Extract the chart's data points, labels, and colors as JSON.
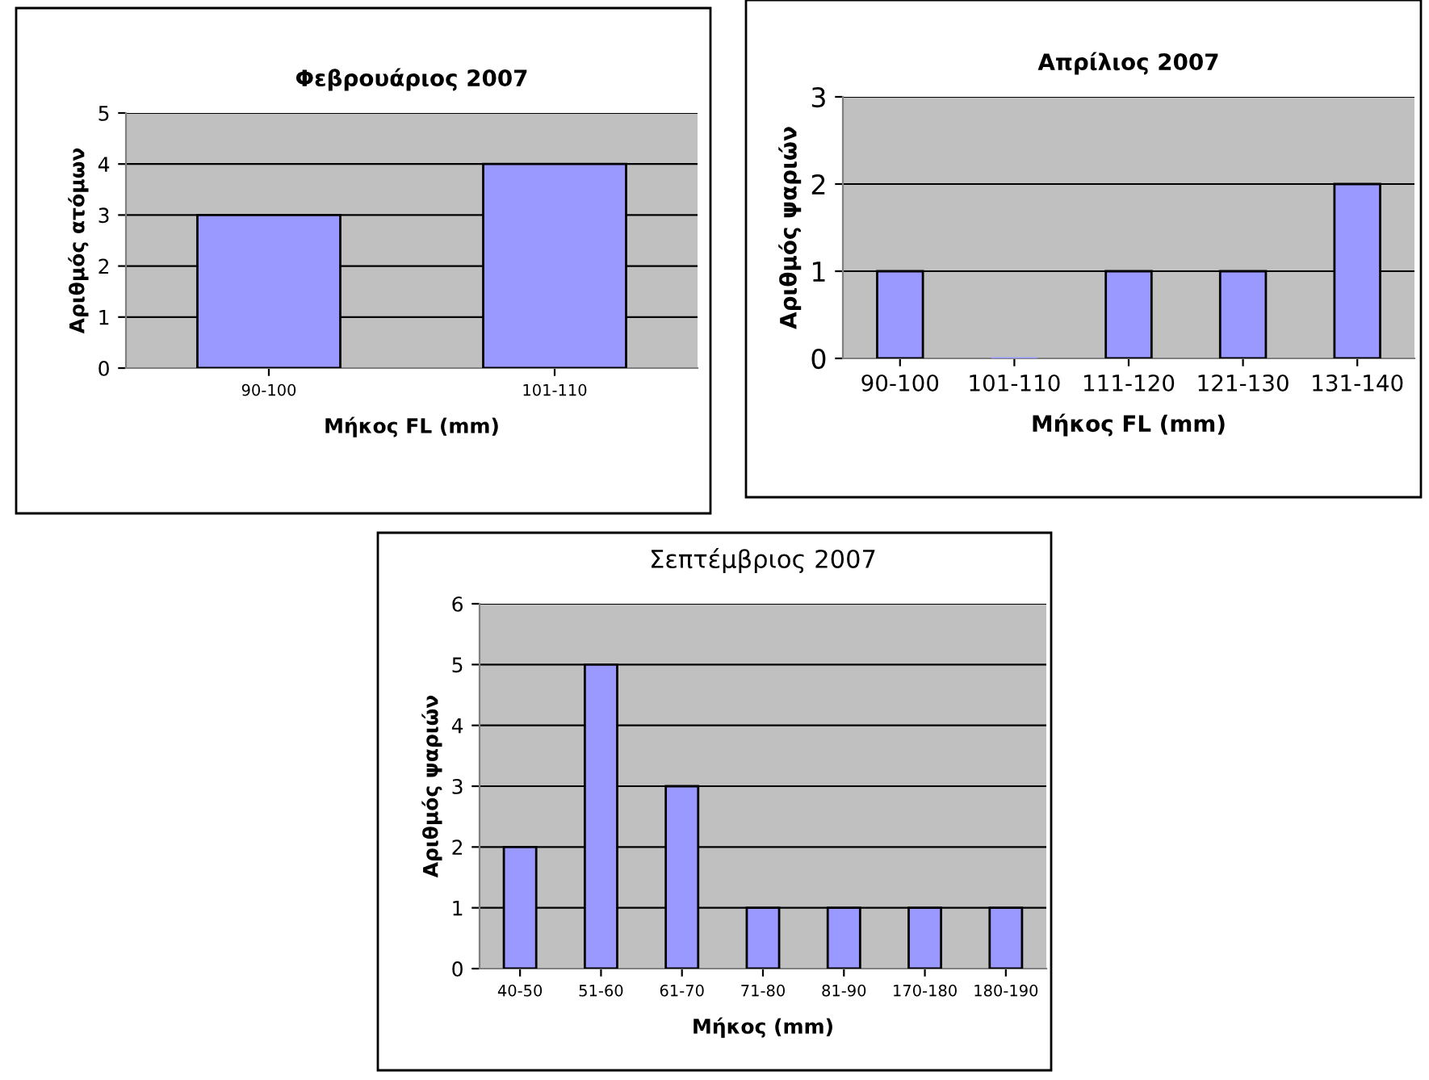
{
  "chart_data": [
    {
      "type": "bar",
      "title": "Φεβρουάριος 2007",
      "xlabel": "Μήκος FL (mm)",
      "ylabel": "Αριθμός ατόμων",
      "categories": [
        "90-100",
        "101-110"
      ],
      "values": [
        3,
        4
      ],
      "color": "#9999ff",
      "ylim": [
        0,
        5
      ],
      "yticks": [
        0,
        1,
        2,
        3,
        4,
        5
      ],
      "grid": "y"
    },
    {
      "type": "bar",
      "title": "Απρίλιος 2007",
      "xlabel": "Μήκος FL (mm)",
      "ylabel": "Αριθμός ψαριών",
      "categories": [
        "90-100",
        "101-110",
        "111-120",
        "121-130",
        "131-140"
      ],
      "values": [
        1,
        0,
        1,
        1,
        2
      ],
      "color": "#9999ff",
      "ylim": [
        0,
        3
      ],
      "yticks": [
        0,
        1,
        2,
        3
      ],
      "grid": "y"
    },
    {
      "type": "bar",
      "title": "Σεπτέμβριος 2007",
      "xlabel": "Μήκος (mm)",
      "ylabel": "Αριθμός ψαριών",
      "categories": [
        "40-50",
        "51-60",
        "61-70",
        "71-80",
        "81-90",
        "170-180",
        "180-190"
      ],
      "values": [
        2,
        5,
        3,
        1,
        1,
        1,
        1
      ],
      "color": "#9999ff",
      "ylim": [
        0,
        6
      ],
      "yticks": [
        0,
        1,
        2,
        3,
        4,
        5,
        6
      ],
      "grid": "y"
    }
  ]
}
